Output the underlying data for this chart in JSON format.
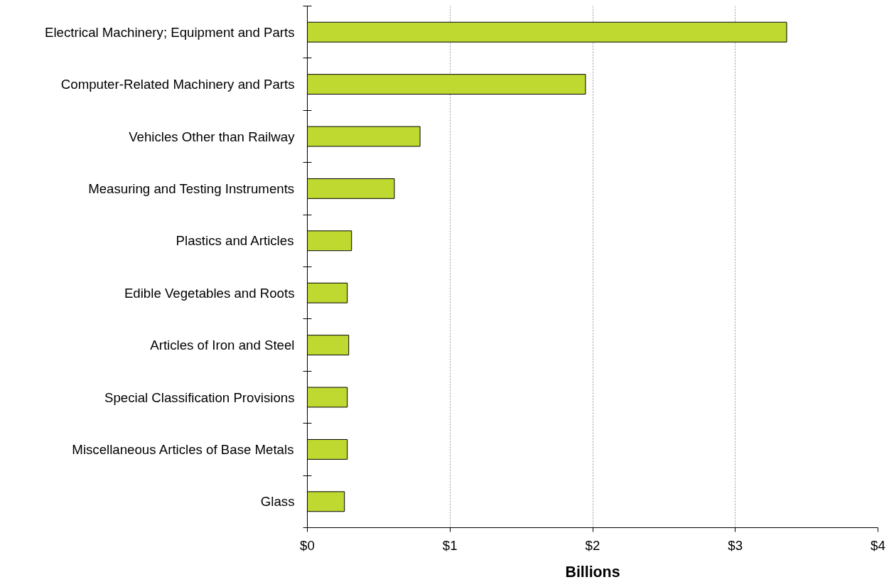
{
  "chart_data": {
    "type": "bar",
    "orientation": "horizontal",
    "xlabel": "Billions",
    "categories": [
      "Electrical Machinery; Equipment and Parts",
      "Computer-Related Machinery and Parts",
      "Vehicles Other than Railway",
      "Measuring and Testing Instruments",
      "Plastics and Articles",
      "Edible Vegetables and Roots",
      "Articles of Iron and Steel",
      "Special Classification Provisions",
      "Miscellaneous Articles of Base Metals",
      "Glass"
    ],
    "values": [
      3.36,
      1.95,
      0.79,
      0.61,
      0.31,
      0.28,
      0.29,
      0.28,
      0.28,
      0.26
    ],
    "color": "#c0d930",
    "xlim": [
      0,
      4
    ],
    "xticks": [
      {
        "value": 0,
        "label": "$0"
      },
      {
        "value": 1,
        "label": "$1"
      },
      {
        "value": 2,
        "label": "$2"
      },
      {
        "value": 3,
        "label": "$3"
      },
      {
        "value": 4,
        "label": "$4"
      }
    ],
    "grid": "x"
  }
}
